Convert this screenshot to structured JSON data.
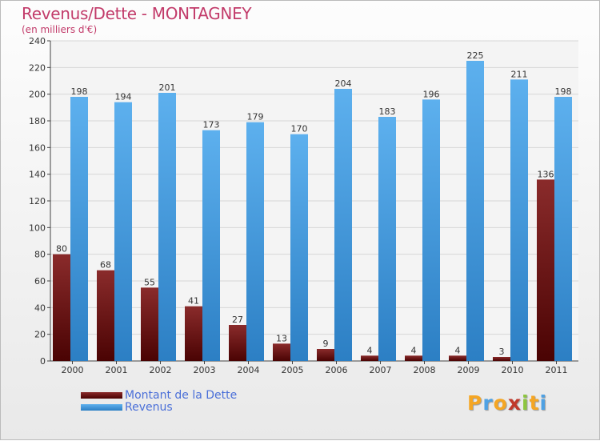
{
  "chart_data": {
    "type": "bar",
    "title": "Revenus/Dette - MONTAGNEY",
    "subtitle": "(en milliers d'€)",
    "categories": [
      "2000",
      "2001",
      "2002",
      "2003",
      "2004",
      "2005",
      "2006",
      "2007",
      "2008",
      "2009",
      "2010",
      "2011"
    ],
    "series": [
      {
        "name": "Montant de la Dette",
        "color": "#6e1414",
        "values": [
          80,
          68,
          55,
          41,
          27,
          13,
          9,
          4,
          4,
          4,
          3,
          136
        ]
      },
      {
        "name": "Revenus",
        "color": "#4ea1e3",
        "values": [
          198,
          194,
          201,
          173,
          179,
          170,
          204,
          183,
          196,
          225,
          211,
          198
        ]
      }
    ],
    "ylim": [
      0,
      240
    ],
    "yticks": [
      0,
      20,
      40,
      60,
      80,
      100,
      120,
      140,
      160,
      180,
      200,
      220,
      240
    ],
    "grid": true,
    "legend": "bottom-left"
  },
  "brand": {
    "letters": [
      "P",
      "r",
      "o",
      "x",
      "i",
      "t",
      "i"
    ],
    "colors": [
      "#f5a623",
      "#4ea1e3",
      "#f5a623",
      "#c0392b",
      "#8dc63f",
      "#f5a623",
      "#4ea1e3"
    ]
  }
}
